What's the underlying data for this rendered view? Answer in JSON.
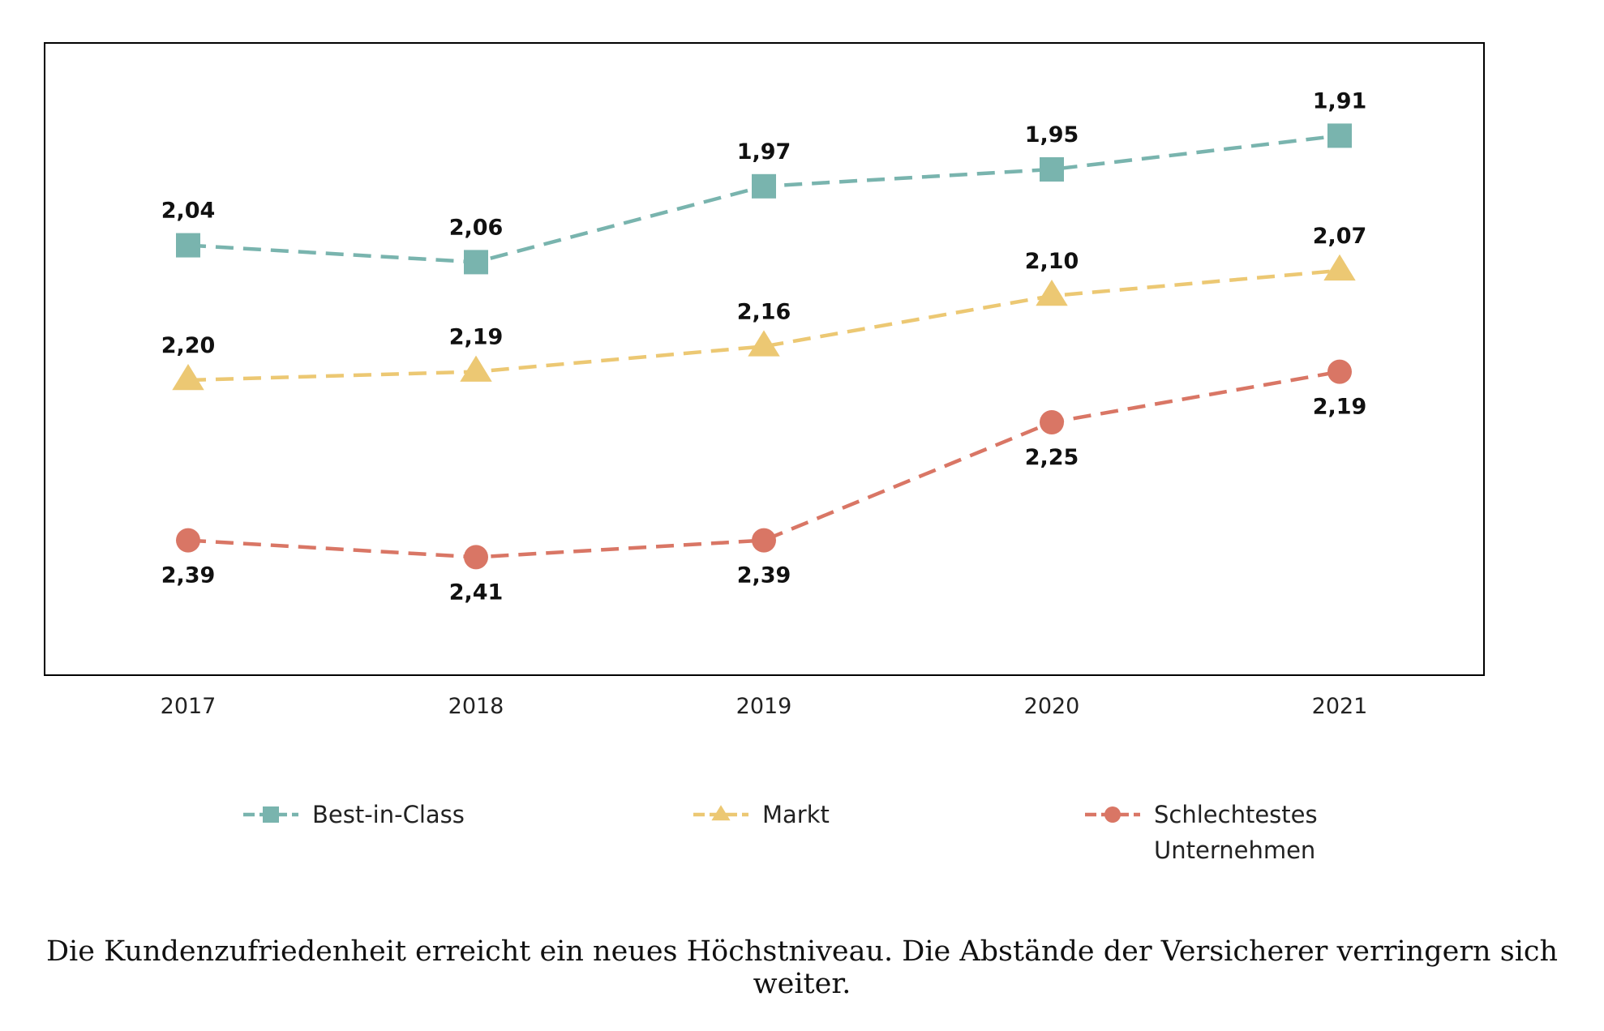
{
  "chart_data": {
    "type": "line",
    "categories": [
      "2017",
      "2018",
      "2019",
      "2020",
      "2021"
    ],
    "ylim": [
      2.55,
      1.8
    ],
    "y_inverted": true,
    "grid": false,
    "legend_position": "bottom",
    "series": [
      {
        "name": "Best-in-Class",
        "values": [
          2.04,
          2.06,
          1.97,
          1.95,
          1.91
        ],
        "labels": [
          "2,04",
          "2,06",
          "1,97",
          "1,95",
          "1,91"
        ],
        "label_position": "above",
        "color": "#79b4ae",
        "marker": "square"
      },
      {
        "name": "Markt",
        "values": [
          2.2,
          2.19,
          2.16,
          2.1,
          2.07
        ],
        "labels": [
          "2,20",
          "2,19",
          "2,16",
          "2,10",
          "2,07"
        ],
        "label_position": "above",
        "color": "#ecc873",
        "marker": "triangle"
      },
      {
        "name": "Schlechtestes Unternehmen",
        "name_lines": [
          "Schlechtestes",
          "Unternehmen"
        ],
        "values": [
          2.39,
          2.41,
          2.39,
          2.25,
          2.19
        ],
        "labels": [
          "2,39",
          "2,41",
          "2,39",
          "2,25",
          "2,19"
        ],
        "label_position": "below",
        "color": "#d97665",
        "marker": "circle"
      }
    ]
  },
  "caption": "Die Kundenzufriedenheit erreicht ein neues Höchstniveau. Die Abstände der Versicherer verringern sich weiter."
}
